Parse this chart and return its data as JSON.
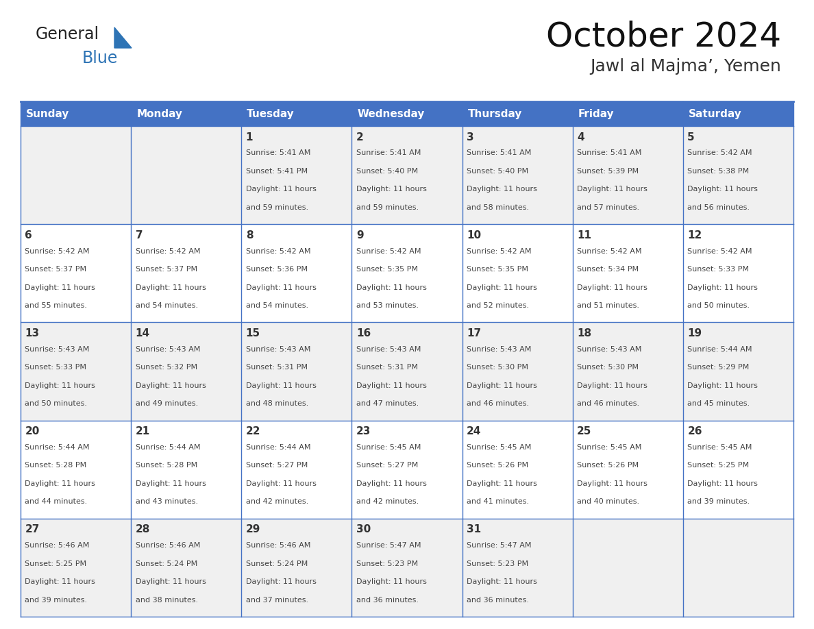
{
  "title": "October 2024",
  "subtitle": "Jawl al Majma’, Yemen",
  "header_color": "#4472C4",
  "header_text_color": "#FFFFFF",
  "cell_bg_even": "#F0F0F0",
  "cell_bg_odd": "#FFFFFF",
  "day_names": [
    "Sunday",
    "Monday",
    "Tuesday",
    "Wednesday",
    "Thursday",
    "Friday",
    "Saturday"
  ],
  "weeks": [
    [
      {
        "day": "",
        "sunrise": "",
        "sunset": "",
        "daylight": ""
      },
      {
        "day": "",
        "sunrise": "",
        "sunset": "",
        "daylight": ""
      },
      {
        "day": "1",
        "sunrise": "5:41 AM",
        "sunset": "5:41 PM",
        "daylight": "11 hours and 59 minutes."
      },
      {
        "day": "2",
        "sunrise": "5:41 AM",
        "sunset": "5:40 PM",
        "daylight": "11 hours and 59 minutes."
      },
      {
        "day": "3",
        "sunrise": "5:41 AM",
        "sunset": "5:40 PM",
        "daylight": "11 hours and 58 minutes."
      },
      {
        "day": "4",
        "sunrise": "5:41 AM",
        "sunset": "5:39 PM",
        "daylight": "11 hours and 57 minutes."
      },
      {
        "day": "5",
        "sunrise": "5:42 AM",
        "sunset": "5:38 PM",
        "daylight": "11 hours and 56 minutes."
      }
    ],
    [
      {
        "day": "6",
        "sunrise": "5:42 AM",
        "sunset": "5:37 PM",
        "daylight": "11 hours and 55 minutes."
      },
      {
        "day": "7",
        "sunrise": "5:42 AM",
        "sunset": "5:37 PM",
        "daylight": "11 hours and 54 minutes."
      },
      {
        "day": "8",
        "sunrise": "5:42 AM",
        "sunset": "5:36 PM",
        "daylight": "11 hours and 54 minutes."
      },
      {
        "day": "9",
        "sunrise": "5:42 AM",
        "sunset": "5:35 PM",
        "daylight": "11 hours and 53 minutes."
      },
      {
        "day": "10",
        "sunrise": "5:42 AM",
        "sunset": "5:35 PM",
        "daylight": "11 hours and 52 minutes."
      },
      {
        "day": "11",
        "sunrise": "5:42 AM",
        "sunset": "5:34 PM",
        "daylight": "11 hours and 51 minutes."
      },
      {
        "day": "12",
        "sunrise": "5:42 AM",
        "sunset": "5:33 PM",
        "daylight": "11 hours and 50 minutes."
      }
    ],
    [
      {
        "day": "13",
        "sunrise": "5:43 AM",
        "sunset": "5:33 PM",
        "daylight": "11 hours and 50 minutes."
      },
      {
        "day": "14",
        "sunrise": "5:43 AM",
        "sunset": "5:32 PM",
        "daylight": "11 hours and 49 minutes."
      },
      {
        "day": "15",
        "sunrise": "5:43 AM",
        "sunset": "5:31 PM",
        "daylight": "11 hours and 48 minutes."
      },
      {
        "day": "16",
        "sunrise": "5:43 AM",
        "sunset": "5:31 PM",
        "daylight": "11 hours and 47 minutes."
      },
      {
        "day": "17",
        "sunrise": "5:43 AM",
        "sunset": "5:30 PM",
        "daylight": "11 hours and 46 minutes."
      },
      {
        "day": "18",
        "sunrise": "5:43 AM",
        "sunset": "5:30 PM",
        "daylight": "11 hours and 46 minutes."
      },
      {
        "day": "19",
        "sunrise": "5:44 AM",
        "sunset": "5:29 PM",
        "daylight": "11 hours and 45 minutes."
      }
    ],
    [
      {
        "day": "20",
        "sunrise": "5:44 AM",
        "sunset": "5:28 PM",
        "daylight": "11 hours and 44 minutes."
      },
      {
        "day": "21",
        "sunrise": "5:44 AM",
        "sunset": "5:28 PM",
        "daylight": "11 hours and 43 minutes."
      },
      {
        "day": "22",
        "sunrise": "5:44 AM",
        "sunset": "5:27 PM",
        "daylight": "11 hours and 42 minutes."
      },
      {
        "day": "23",
        "sunrise": "5:45 AM",
        "sunset": "5:27 PM",
        "daylight": "11 hours and 42 minutes."
      },
      {
        "day": "24",
        "sunrise": "5:45 AM",
        "sunset": "5:26 PM",
        "daylight": "11 hours and 41 minutes."
      },
      {
        "day": "25",
        "sunrise": "5:45 AM",
        "sunset": "5:26 PM",
        "daylight": "11 hours and 40 minutes."
      },
      {
        "day": "26",
        "sunrise": "5:45 AM",
        "sunset": "5:25 PM",
        "daylight": "11 hours and 39 minutes."
      }
    ],
    [
      {
        "day": "27",
        "sunrise": "5:46 AM",
        "sunset": "5:25 PM",
        "daylight": "11 hours and 39 minutes."
      },
      {
        "day": "28",
        "sunrise": "5:46 AM",
        "sunset": "5:24 PM",
        "daylight": "11 hours and 38 minutes."
      },
      {
        "day": "29",
        "sunrise": "5:46 AM",
        "sunset": "5:24 PM",
        "daylight": "11 hours and 37 minutes."
      },
      {
        "day": "30",
        "sunrise": "5:47 AM",
        "sunset": "5:23 PM",
        "daylight": "11 hours and 36 minutes."
      },
      {
        "day": "31",
        "sunrise": "5:47 AM",
        "sunset": "5:23 PM",
        "daylight": "11 hours and 36 minutes."
      },
      {
        "day": "",
        "sunrise": "",
        "sunset": "",
        "daylight": ""
      },
      {
        "day": "",
        "sunrise": "",
        "sunset": "",
        "daylight": ""
      }
    ]
  ],
  "logo_text_general": "General",
  "logo_text_blue": "Blue",
  "text_color_dark": "#222222",
  "text_color_blue": "#2E74B5",
  "grid_line_color": "#4472C4",
  "cell_text_color": "#444444",
  "day_num_color": "#333333",
  "title_fontsize": 36,
  "subtitle_fontsize": 18,
  "header_fontsize": 11,
  "day_num_fontsize": 11,
  "cell_fontsize": 8
}
